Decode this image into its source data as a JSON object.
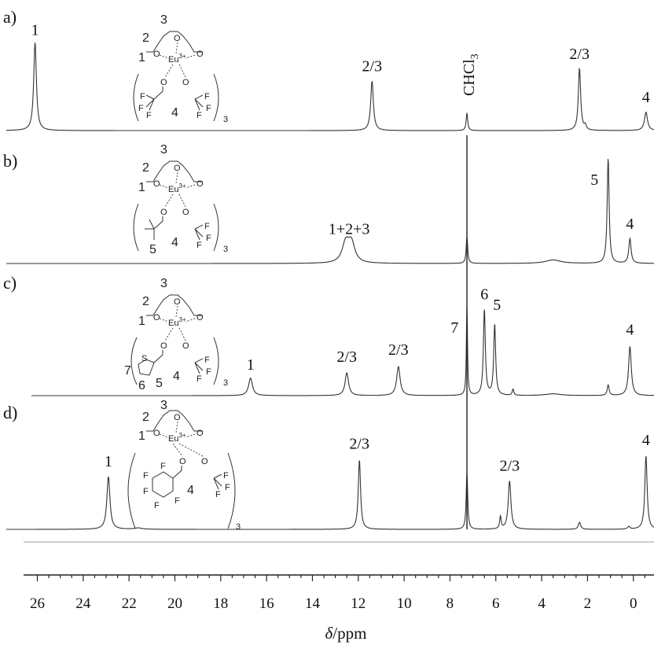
{
  "chart_data": {
    "type": "line",
    "xlabel_symbol": "δ",
    "xlabel_unit": "/ppm",
    "xlim": [
      26.6,
      -0.9
    ],
    "x_ticks": [
      26,
      24,
      22,
      20,
      18,
      16,
      14,
      12,
      10,
      8,
      6,
      4,
      2,
      0
    ],
    "chcl3_label": "CHCl",
    "chcl3_sub": "3",
    "chcl3_ppm": 7.26,
    "panels": [
      {
        "letter": "a)",
        "peaks": [
          {
            "ppm": 26.1,
            "height": 1.0,
            "width": 0.07
          },
          {
            "ppm": 11.4,
            "height": 0.56,
            "width": 0.07
          },
          {
            "ppm": 7.26,
            "height": 0.2,
            "width": 0.04
          },
          {
            "ppm": 2.35,
            "height": 0.71,
            "width": 0.06
          },
          {
            "ppm": 2.1,
            "height": 0.05,
            "width": 0.05
          },
          {
            "ppm": -0.55,
            "height": 0.21,
            "width": 0.08
          }
        ],
        "labels": [
          {
            "text": "1",
            "ppm": 26.1,
            "level": 1.03
          },
          {
            "text": "2/3",
            "ppm": 11.4,
            "level": 0.62
          },
          {
            "text": "2/3",
            "ppm": 2.35,
            "level": 0.76
          },
          {
            "text": "4",
            "ppm": -0.55,
            "level": 0.27
          }
        ]
      },
      {
        "letter": "b)",
        "peaks": [
          {
            "ppm": 12.55,
            "height": 0.22,
            "width": 0.18
          },
          {
            "ppm": 12.3,
            "height": 0.22,
            "width": 0.18
          },
          {
            "ppm": 7.26,
            "height": 0.3,
            "width": 0.04
          },
          {
            "ppm": 3.5,
            "height": 0.04,
            "width": 0.4
          },
          {
            "ppm": 1.1,
            "height": 1.2,
            "width": 0.05
          },
          {
            "ppm": 0.15,
            "height": 0.28,
            "width": 0.06
          }
        ],
        "labels": [
          {
            "text": "1+2+3",
            "ppm": 12.4,
            "level": 0.28
          },
          {
            "text": "5",
            "ppm": 1.7,
            "level": 0.84
          },
          {
            "text": "4",
            "ppm": 0.15,
            "level": 0.34
          }
        ]
      },
      {
        "letter": "c)",
        "peaks": [
          {
            "ppm": 16.7,
            "height": 0.2,
            "width": 0.1
          },
          {
            "ppm": 12.5,
            "height": 0.26,
            "width": 0.09
          },
          {
            "ppm": 10.25,
            "height": 0.33,
            "width": 0.09
          },
          {
            "ppm": 7.26,
            "height": 1.0,
            "width": 0.03
          },
          {
            "ppm": 6.5,
            "height": 0.98,
            "width": 0.05
          },
          {
            "ppm": 6.05,
            "height": 0.81,
            "width": 0.05
          },
          {
            "ppm": 5.25,
            "height": 0.07,
            "width": 0.04
          },
          {
            "ppm": 3.5,
            "height": 0.02,
            "width": 0.4
          },
          {
            "ppm": 1.1,
            "height": 0.12,
            "width": 0.05
          },
          {
            "ppm": 0.15,
            "height": 0.56,
            "width": 0.07
          }
        ],
        "labels": [
          {
            "text": "1",
            "ppm": 16.7,
            "level": 0.24
          },
          {
            "text": "2/3",
            "ppm": 12.5,
            "level": 0.33
          },
          {
            "text": "2/3",
            "ppm": 10.25,
            "level": 0.41
          },
          {
            "text": "7",
            "ppm": 7.8,
            "level": 0.66
          },
          {
            "text": "6",
            "ppm": 6.5,
            "level": 1.04
          },
          {
            "text": "5",
            "ppm": 5.95,
            "level": 0.92
          },
          {
            "text": "4",
            "ppm": 0.15,
            "level": 0.64
          }
        ]
      },
      {
        "letter": "d)",
        "peaks": [
          {
            "ppm": 22.9,
            "height": 0.6,
            "width": 0.08
          },
          {
            "ppm": 21.6,
            "height": 0.015,
            "width": 0.2
          },
          {
            "ppm": 11.95,
            "height": 0.79,
            "width": 0.06
          },
          {
            "ppm": 7.26,
            "height": 0.64,
            "width": 0.04
          },
          {
            "ppm": 5.8,
            "height": 0.14,
            "width": 0.04
          },
          {
            "ppm": 5.4,
            "height": 0.55,
            "width": 0.07
          },
          {
            "ppm": 2.35,
            "height": 0.08,
            "width": 0.06
          },
          {
            "ppm": 0.2,
            "height": 0.03,
            "width": 0.06
          },
          {
            "ppm": -0.55,
            "height": 0.84,
            "width": 0.06
          }
        ],
        "labels": [
          {
            "text": "1",
            "ppm": 22.9,
            "level": 0.66
          },
          {
            "text": "2/3",
            "ppm": 11.95,
            "level": 0.86
          },
          {
            "text": "2/3",
            "ppm": 5.4,
            "level": 0.61
          },
          {
            "text": "4",
            "ppm": -0.55,
            "level": 0.9
          }
        ]
      }
    ]
  },
  "structures": {
    "ligand_numbers": {
      "n1": "1",
      "n2": "2",
      "n3": "3",
      "n4": "4"
    },
    "atoms": {
      "O": "O",
      "Eu": "Eu",
      "Eu_charge": "3+",
      "F": "F",
      "S": "S"
    },
    "subscript": "3",
    "b_extra": {
      "n5": "5"
    },
    "c_extra": {
      "n5": "5",
      "n6": "6",
      "n7": "7"
    }
  }
}
